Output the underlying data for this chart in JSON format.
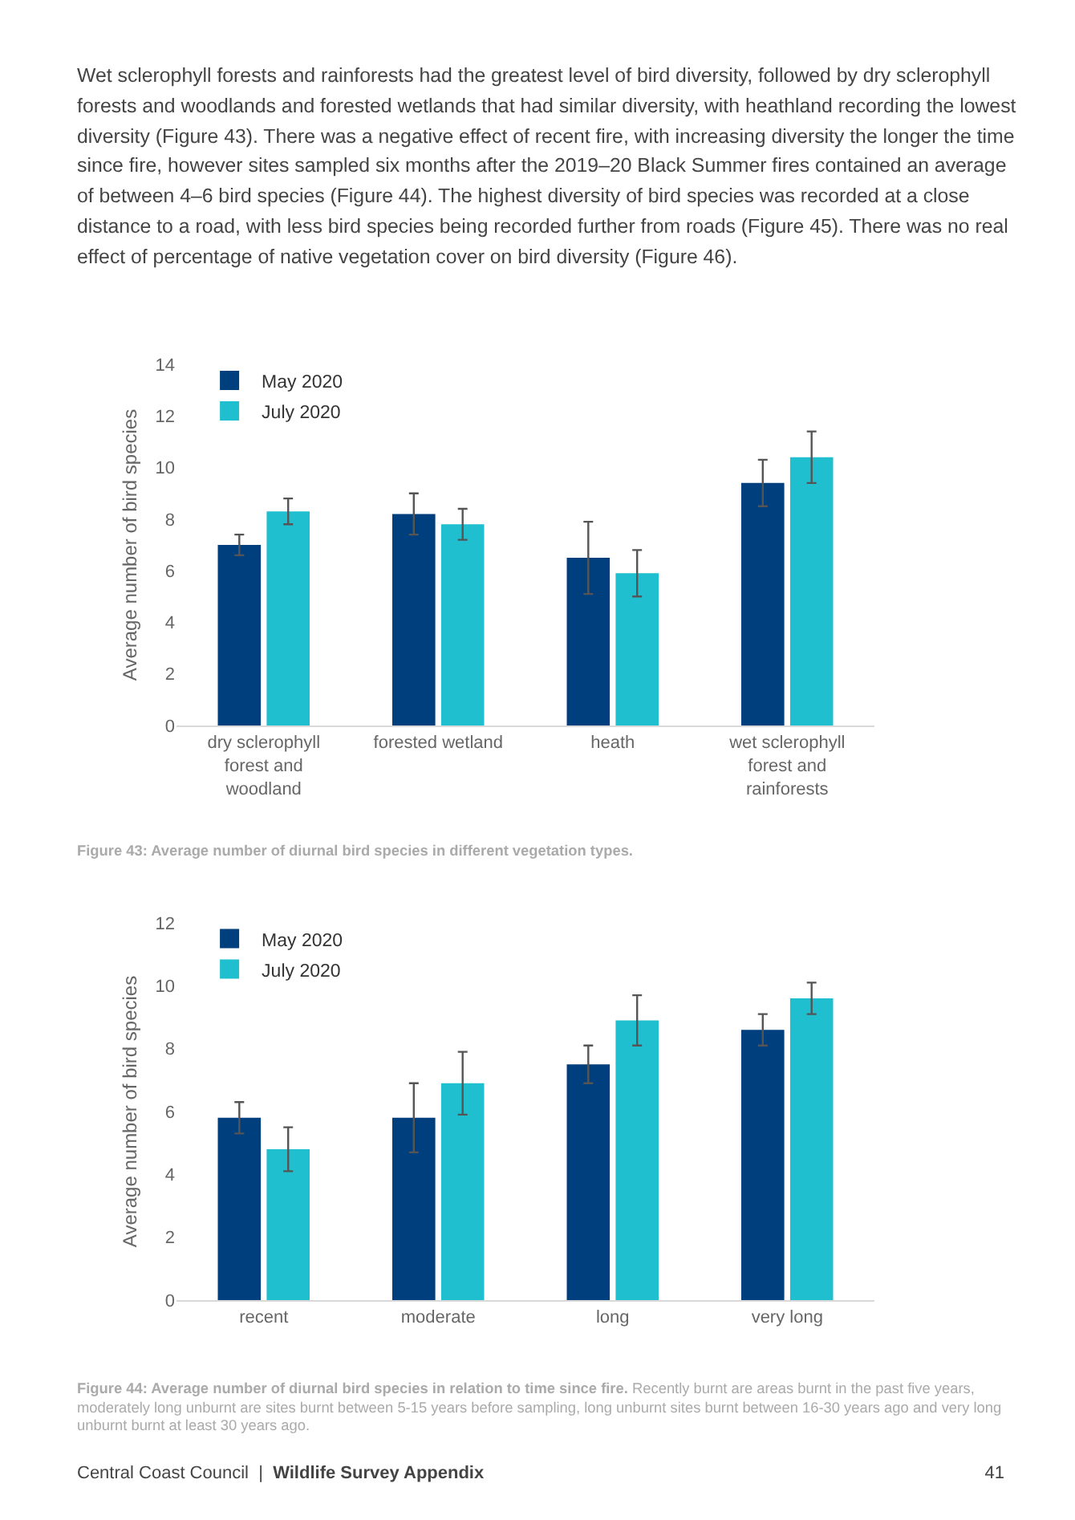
{
  "chart_data": [
    {
      "type": "bar",
      "ylabel": "Average number of bird species",
      "categories": [
        "dry sclerophyll\nforest and\nwoodland",
        "forested wetland",
        "heath",
        "wet sclerophyll\nforest and\nrainforests"
      ],
      "series": [
        {
          "name": "May 2020",
          "color": "#003f7d",
          "values": [
            7.0,
            8.2,
            6.5,
            9.4
          ],
          "errors": [
            0.4,
            0.8,
            1.4,
            0.9
          ]
        },
        {
          "name": "July 2020",
          "color": "#1fbfcf",
          "values": [
            8.3,
            7.8,
            5.9,
            10.4
          ],
          "errors": [
            0.5,
            0.6,
            0.9,
            1.0
          ]
        }
      ],
      "ylim": [
        0,
        14
      ],
      "yticks": [
        0,
        2,
        4,
        6,
        8,
        10,
        12,
        14
      ],
      "grid": false,
      "legend": "top left",
      "annotations": [
        "Wet sclerophyll forests and rainforests had the greatest level of bird diversity, followed by dry sclerophyll forests and woodlands and forested wetlands that had similar diversity, with heathland recording the lowest diversity (Figure 43). There was a negative effect of recent fire, with increasing diversity the longer the time since fire, however sites sampled six months after the 2019–20 Black Summer fires contained an average of between 4–6 bird species (Figure 44). The highest diversity of bird species was recorded at a close distance to a road, with less bird species being recorded further from roads (Figure 45). There was no real effect of percentage of native vegetation cover on bird diversity (Figure 46).",
        "Figure 43: Average number of diurnal bird species in different vegetation types."
      ]
    },
    {
      "type": "bar",
      "ylabel": "Average number of bird species",
      "categories": [
        "recent",
        "moderate",
        "long",
        "very long"
      ],
      "series": [
        {
          "name": "May 2020",
          "color": "#003f7d",
          "values": [
            5.8,
            5.8,
            7.5,
            8.6
          ],
          "errors": [
            0.5,
            1.1,
            0.6,
            0.5
          ]
        },
        {
          "name": "July 2020",
          "color": "#1fbfcf",
          "values": [
            4.8,
            6.9,
            8.9,
            9.6
          ],
          "errors": [
            0.7,
            1.0,
            0.8,
            0.5
          ]
        }
      ],
      "ylim": [
        0,
        12
      ],
      "yticks": [
        0,
        2,
        4,
        6,
        8,
        10,
        12
      ],
      "grid": false,
      "legend": "top left",
      "annotations": [
        "Figure 44: Average number of diurnal bird species in relation to time since fire.",
        "Recently burnt are areas burnt in the past five years, moderately long unburnt are sites burnt between 5-15 years before sampling, long unburnt sites burnt between 16-30 years ago and very long unburnt burnt at least 30 years ago.",
        "Central Coast Council",
        "|",
        "Wildlife Survey Appendix",
        "41"
      ]
    }
  ]
}
